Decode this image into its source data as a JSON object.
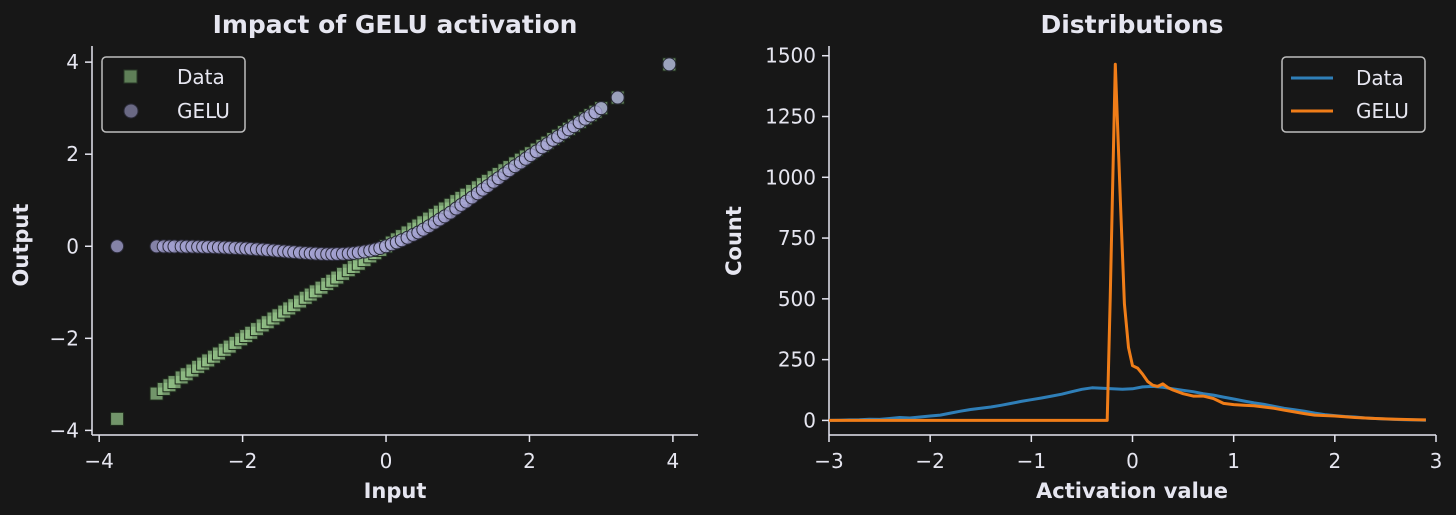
{
  "colors": {
    "background": "#171717",
    "text": "#e6e6f0",
    "data_marker": "#96c68a",
    "gelu_marker": "#a9a7d8",
    "data_line": "#2f7fb8",
    "gelu_line": "#f07d18"
  },
  "chart_data": [
    {
      "type": "scatter",
      "title": "Impact of GELU activation",
      "xlabel": "Input",
      "ylabel": "Output",
      "xlim": [
        -4.1,
        4.35
      ],
      "ylim": [
        -4.1,
        4.35
      ],
      "xticks": [
        -4,
        -2,
        0,
        2,
        4
      ],
      "xtick_labels": [
        "−4",
        "−2",
        "0",
        "2",
        "4"
      ],
      "yticks": [
        -4,
        -2,
        0,
        2,
        4
      ],
      "ytick_labels": [
        "−4",
        "−2",
        "0",
        "2",
        "4"
      ],
      "legend_position": "top-left",
      "grid": false,
      "series": [
        {
          "name": "Data",
          "marker": "square",
          "x": [
            -3.75,
            -3.2,
            -3.1,
            -3.02,
            -2.95,
            -2.85,
            -2.78,
            -2.7,
            -2.62,
            -2.55,
            -2.48,
            -2.4,
            -2.33,
            -2.25,
            -2.18,
            -2.1,
            -2.02,
            -1.95,
            -1.88,
            -1.8,
            -1.72,
            -1.65,
            -1.57,
            -1.5,
            -1.42,
            -1.35,
            -1.28,
            -1.2,
            -1.12,
            -1.05,
            -0.98,
            -0.9,
            -0.82,
            -0.75,
            -0.68,
            -0.6,
            -0.52,
            -0.45,
            -0.38,
            -0.3,
            -0.22,
            -0.15,
            -0.08,
            0.0,
            0.08,
            0.15,
            0.22,
            0.3,
            0.38,
            0.45,
            0.52,
            0.6,
            0.68,
            0.75,
            0.82,
            0.9,
            0.98,
            1.05,
            1.12,
            1.2,
            1.28,
            1.35,
            1.42,
            1.5,
            1.57,
            1.65,
            1.72,
            1.8,
            1.88,
            1.95,
            2.02,
            2.1,
            2.18,
            2.25,
            2.33,
            2.4,
            2.48,
            2.55,
            2.62,
            2.7,
            2.78,
            2.85,
            2.92,
            3.0,
            3.23,
            3.95
          ],
          "y": [
            -3.75,
            -3.2,
            -3.1,
            -3.02,
            -2.95,
            -2.85,
            -2.78,
            -2.7,
            -2.62,
            -2.55,
            -2.48,
            -2.4,
            -2.33,
            -2.25,
            -2.18,
            -2.1,
            -2.02,
            -1.95,
            -1.88,
            -1.8,
            -1.72,
            -1.65,
            -1.57,
            -1.5,
            -1.42,
            -1.35,
            -1.28,
            -1.2,
            -1.12,
            -1.05,
            -0.98,
            -0.9,
            -0.82,
            -0.75,
            -0.68,
            -0.6,
            -0.52,
            -0.45,
            -0.38,
            -0.3,
            -0.22,
            -0.15,
            -0.08,
            0.0,
            0.08,
            0.15,
            0.22,
            0.3,
            0.38,
            0.45,
            0.52,
            0.6,
            0.68,
            0.75,
            0.82,
            0.9,
            0.98,
            1.05,
            1.12,
            1.2,
            1.28,
            1.35,
            1.42,
            1.5,
            1.57,
            1.65,
            1.72,
            1.8,
            1.88,
            1.95,
            2.02,
            2.1,
            2.18,
            2.25,
            2.33,
            2.4,
            2.48,
            2.55,
            2.62,
            2.7,
            2.78,
            2.85,
            2.92,
            3.0,
            3.23,
            3.95
          ]
        },
        {
          "name": "GELU",
          "marker": "circle",
          "x": [
            -3.75,
            -3.2,
            -3.1,
            -3.02,
            -2.95,
            -2.85,
            -2.78,
            -2.7,
            -2.62,
            -2.55,
            -2.48,
            -2.4,
            -2.33,
            -2.25,
            -2.18,
            -2.1,
            -2.02,
            -1.95,
            -1.88,
            -1.8,
            -1.72,
            -1.65,
            -1.57,
            -1.5,
            -1.42,
            -1.35,
            -1.28,
            -1.2,
            -1.12,
            -1.05,
            -0.98,
            -0.9,
            -0.82,
            -0.75,
            -0.68,
            -0.6,
            -0.52,
            -0.45,
            -0.38,
            -0.3,
            -0.22,
            -0.15,
            -0.08,
            0.0,
            0.08,
            0.15,
            0.22,
            0.3,
            0.38,
            0.45,
            0.52,
            0.6,
            0.68,
            0.75,
            0.82,
            0.9,
            0.98,
            1.05,
            1.12,
            1.2,
            1.28,
            1.35,
            1.42,
            1.5,
            1.57,
            1.65,
            1.72,
            1.8,
            1.88,
            1.95,
            2.02,
            2.1,
            2.18,
            2.25,
            2.33,
            2.4,
            2.48,
            2.55,
            2.62,
            2.7,
            2.78,
            2.85,
            2.92,
            3.0,
            3.23,
            3.95
          ],
          "y": [
            0.0,
            -0.002,
            -0.003,
            -0.004,
            -0.005,
            -0.006,
            -0.007,
            -0.009,
            -0.012,
            -0.014,
            -0.016,
            -0.02,
            -0.023,
            -0.027,
            -0.032,
            -0.037,
            -0.044,
            -0.05,
            -0.057,
            -0.065,
            -0.073,
            -0.082,
            -0.091,
            -0.1,
            -0.11,
            -0.12,
            -0.128,
            -0.138,
            -0.147,
            -0.154,
            -0.16,
            -0.166,
            -0.17,
            -0.17,
            -0.168,
            -0.165,
            -0.157,
            -0.146,
            -0.134,
            -0.115,
            -0.092,
            -0.067,
            -0.037,
            0.0,
            0.043,
            0.084,
            0.13,
            0.186,
            0.246,
            0.3,
            0.36,
            0.435,
            0.51,
            0.58,
            0.65,
            0.73,
            0.82,
            0.9,
            0.97,
            1.06,
            1.15,
            1.23,
            1.31,
            1.4,
            1.48,
            1.57,
            1.65,
            1.74,
            1.82,
            1.9,
            1.98,
            2.06,
            2.15,
            2.22,
            2.31,
            2.38,
            2.46,
            2.54,
            2.61,
            2.69,
            2.77,
            2.84,
            2.91,
            3.0,
            3.23,
            3.95
          ]
        }
      ]
    },
    {
      "type": "line",
      "title": "Distributions",
      "xlabel": "Activation value",
      "ylabel": "Count",
      "xlim": [
        -3,
        3
      ],
      "ylim": [
        -60,
        1540
      ],
      "xticks": [
        -3,
        -2,
        -1,
        0,
        1,
        2,
        3
      ],
      "xtick_labels": [
        "−3",
        "−2",
        "−1",
        "0",
        "1",
        "2",
        "3"
      ],
      "yticks": [
        0,
        250,
        500,
        750,
        1000,
        1250,
        1500
      ],
      "ytick_labels": [
        "0",
        "250",
        "500",
        "750",
        "1000",
        "1250",
        "1500"
      ],
      "legend_position": "top-right",
      "grid": false,
      "series": [
        {
          "name": "Data",
          "x": [
            -3.0,
            -2.9,
            -2.8,
            -2.7,
            -2.6,
            -2.5,
            -2.4,
            -2.3,
            -2.2,
            -2.1,
            -2.0,
            -1.9,
            -1.8,
            -1.7,
            -1.6,
            -1.5,
            -1.4,
            -1.3,
            -1.2,
            -1.1,
            -1.0,
            -0.9,
            -0.8,
            -0.7,
            -0.6,
            -0.5,
            -0.4,
            -0.3,
            -0.2,
            -0.1,
            0.0,
            0.1,
            0.2,
            0.3,
            0.4,
            0.5,
            0.6,
            0.7,
            0.8,
            0.9,
            1.0,
            1.1,
            1.2,
            1.3,
            1.4,
            1.5,
            1.6,
            1.7,
            1.8,
            1.9,
            2.0,
            2.1,
            2.2,
            2.3,
            2.4,
            2.5,
            2.6,
            2.7,
            2.8,
            2.9
          ],
          "y": [
            0,
            1,
            2,
            3,
            5,
            4,
            8,
            12,
            10,
            14,
            18,
            22,
            30,
            38,
            45,
            50,
            55,
            62,
            70,
            78,
            85,
            92,
            100,
            108,
            118,
            128,
            134,
            132,
            130,
            128,
            130,
            138,
            140,
            136,
            130,
            124,
            118,
            110,
            104,
            96,
            88,
            80,
            72,
            66,
            58,
            50,
            44,
            38,
            30,
            24,
            20,
            16,
            14,
            10,
            8,
            6,
            4,
            3,
            2,
            1
          ]
        },
        {
          "name": "GELU",
          "x": [
            -3.0,
            -2.5,
            -2.0,
            -1.5,
            -1.0,
            -0.5,
            -0.25,
            -0.22,
            -0.17,
            -0.12,
            -0.08,
            -0.04,
            0.0,
            0.05,
            0.1,
            0.15,
            0.2,
            0.25,
            0.3,
            0.35,
            0.4,
            0.5,
            0.6,
            0.7,
            0.8,
            0.9,
            1.0,
            1.1,
            1.2,
            1.3,
            1.4,
            1.5,
            1.6,
            1.7,
            1.8,
            2.0,
            2.2,
            2.4,
            2.6,
            2.8,
            2.9
          ],
          "y": [
            0,
            0,
            0,
            0,
            0,
            0,
            0,
            500,
            1465,
            900,
            480,
            300,
            225,
            215,
            190,
            160,
            145,
            140,
            150,
            135,
            125,
            110,
            100,
            100,
            90,
            70,
            65,
            62,
            60,
            55,
            50,
            42,
            35,
            28,
            22,
            18,
            12,
            8,
            5,
            3,
            2
          ]
        }
      ]
    }
  ]
}
